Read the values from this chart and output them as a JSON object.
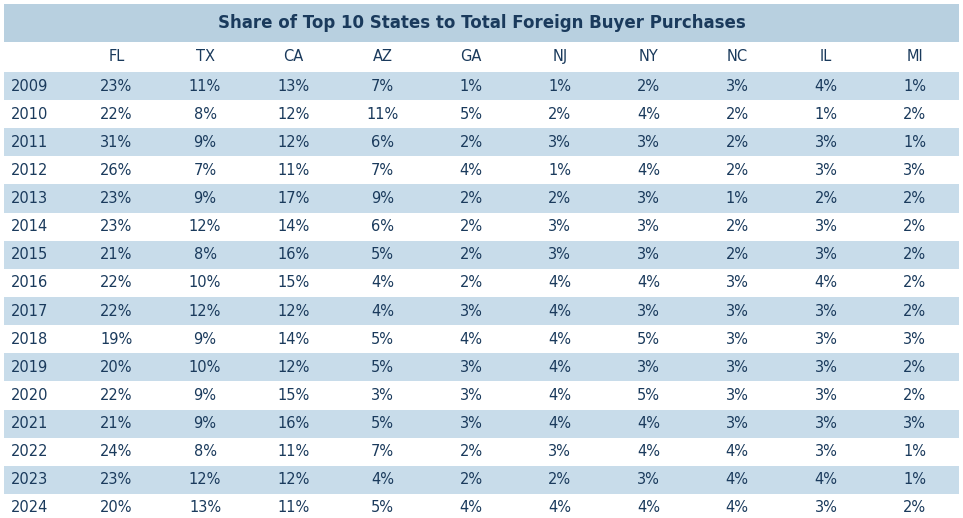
{
  "title": "Share of Top 10 States to Total Foreign Buyer Purchases",
  "columns": [
    "",
    "FL",
    "TX",
    "CA",
    "AZ",
    "GA",
    "NJ",
    "NY",
    "NC",
    "IL",
    "MI"
  ],
  "rows": [
    [
      "2009",
      "23%",
      "11%",
      "13%",
      "7%",
      "1%",
      "1%",
      "2%",
      "3%",
      "4%",
      "1%"
    ],
    [
      "2010",
      "22%",
      "8%",
      "12%",
      "11%",
      "5%",
      "2%",
      "4%",
      "2%",
      "1%",
      "2%"
    ],
    [
      "2011",
      "31%",
      "9%",
      "12%",
      "6%",
      "2%",
      "3%",
      "3%",
      "2%",
      "3%",
      "1%"
    ],
    [
      "2012",
      "26%",
      "7%",
      "11%",
      "7%",
      "4%",
      "1%",
      "4%",
      "2%",
      "3%",
      "3%"
    ],
    [
      "2013",
      "23%",
      "9%",
      "17%",
      "9%",
      "2%",
      "2%",
      "3%",
      "1%",
      "2%",
      "2%"
    ],
    [
      "2014",
      "23%",
      "12%",
      "14%",
      "6%",
      "2%",
      "3%",
      "3%",
      "2%",
      "3%",
      "2%"
    ],
    [
      "2015",
      "21%",
      "8%",
      "16%",
      "5%",
      "2%",
      "3%",
      "3%",
      "2%",
      "3%",
      "2%"
    ],
    [
      "2016",
      "22%",
      "10%",
      "15%",
      "4%",
      "2%",
      "4%",
      "4%",
      "3%",
      "4%",
      "2%"
    ],
    [
      "2017",
      "22%",
      "12%",
      "12%",
      "4%",
      "3%",
      "4%",
      "3%",
      "3%",
      "3%",
      "2%"
    ],
    [
      "2018",
      "19%",
      "9%",
      "14%",
      "5%",
      "4%",
      "4%",
      "5%",
      "3%",
      "3%",
      "3%"
    ],
    [
      "2019",
      "20%",
      "10%",
      "12%",
      "5%",
      "3%",
      "4%",
      "3%",
      "3%",
      "3%",
      "2%"
    ],
    [
      "2020",
      "22%",
      "9%",
      "15%",
      "3%",
      "3%",
      "4%",
      "5%",
      "3%",
      "3%",
      "2%"
    ],
    [
      "2021",
      "21%",
      "9%",
      "16%",
      "5%",
      "3%",
      "4%",
      "4%",
      "3%",
      "3%",
      "3%"
    ],
    [
      "2022",
      "24%",
      "8%",
      "11%",
      "7%",
      "2%",
      "3%",
      "4%",
      "4%",
      "3%",
      "1%"
    ],
    [
      "2023",
      "23%",
      "12%",
      "12%",
      "4%",
      "2%",
      "2%",
      "3%",
      "4%",
      "4%",
      "1%"
    ],
    [
      "2024",
      "20%",
      "13%",
      "11%",
      "5%",
      "4%",
      "4%",
      "4%",
      "4%",
      "3%",
      "2%"
    ]
  ],
  "title_bg_color": "#b8d0e0",
  "header_bg_color": "#ffffff",
  "odd_row_bg_color": "#c8dcea",
  "even_row_bg_color": "#ffffff",
  "text_color": "#1a3a5c",
  "title_fontsize": 12,
  "header_fontsize": 10.5,
  "cell_fontsize": 10.5
}
